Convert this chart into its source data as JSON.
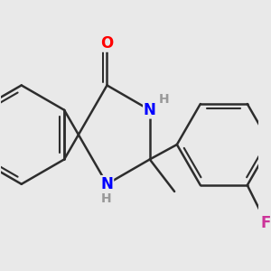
{
  "background_color": "#e9e9e9",
  "bond_color": "#2d2d2d",
  "bond_width": 1.8,
  "atom_colors": {
    "O": "#ff0000",
    "N": "#0000ff",
    "F": "#cc3399",
    "H": "#999999"
  },
  "font_size_atoms": 12,
  "font_size_H": 10
}
